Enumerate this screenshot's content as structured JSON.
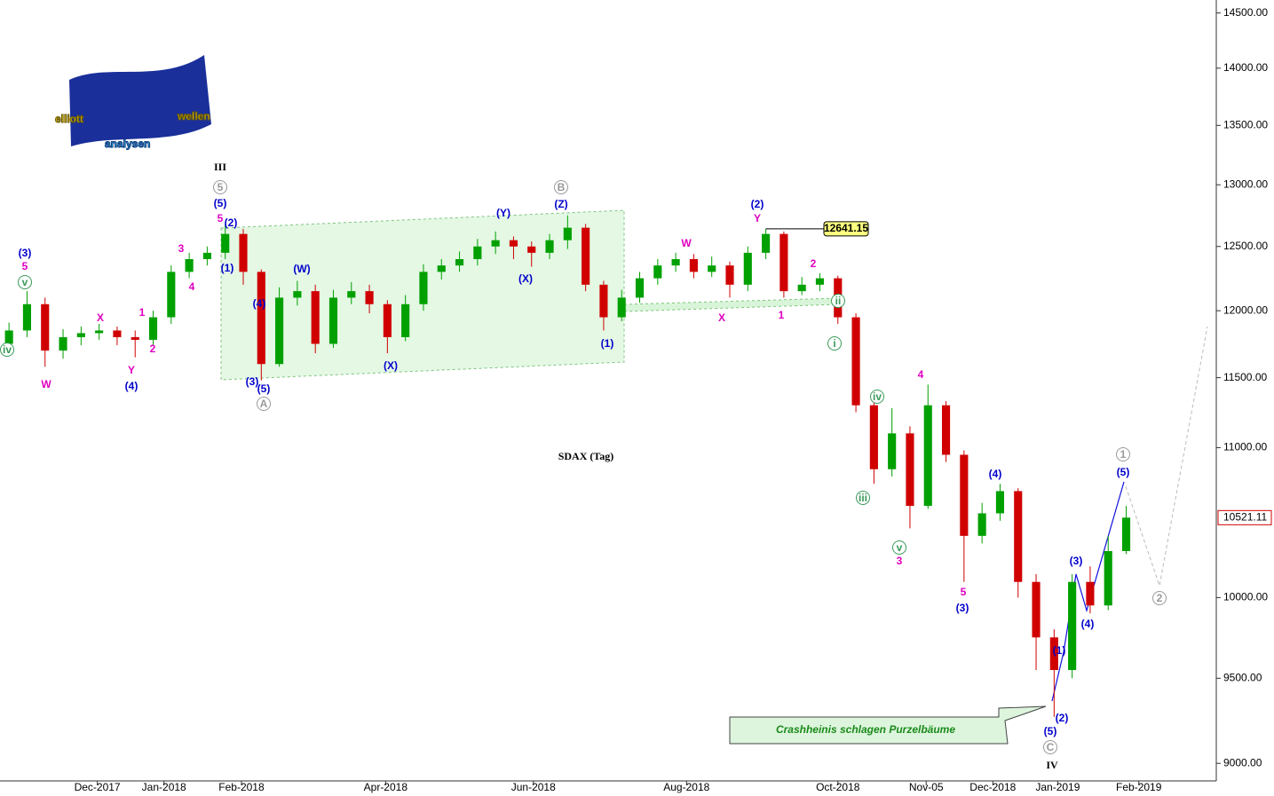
{
  "chart_data": {
    "type": "candlestick",
    "title": "SDAX (Tag)",
    "logo": [
      "elliott",
      "wellen",
      "analysen"
    ],
    "callout": "Crashheinis schlagen Purzelbäume",
    "log_scale": true,
    "up_color": "#00a000",
    "down_color": "#d00000",
    "xlim": [
      0,
      67.5
    ],
    "xticks": [
      {
        "value": 5.4,
        "label": "Dec-2017"
      },
      {
        "value": 9.1,
        "label": "Jan-2018"
      },
      {
        "value": 13.4,
        "label": "Feb-2018"
      },
      {
        "value": 21.4,
        "label": "Apr-2018"
      },
      {
        "value": 29.6,
        "label": "Jun-2018"
      },
      {
        "value": 38.1,
        "label": "Aug-2018"
      },
      {
        "value": 46.5,
        "label": "Oct-2018"
      },
      {
        "value": 51.4,
        "label": "Nov-05"
      },
      {
        "value": 55.1,
        "label": "Dec-2018"
      },
      {
        "value": 58.7,
        "label": "Jan-2019"
      },
      {
        "value": 63.2,
        "label": "Feb-2019"
      }
    ],
    "ylim": [
      8900,
      14620
    ],
    "yticks": [
      {
        "value": 9000,
        "label": "9000.00"
      },
      {
        "value": 9500,
        "label": "9500.00"
      },
      {
        "value": 10000,
        "label": "10000.00"
      },
      {
        "value": 11000,
        "label": "11000.00"
      },
      {
        "value": 11500,
        "label": "11500.00"
      },
      {
        "value": 12000,
        "label": "12000.00"
      },
      {
        "value": 12500,
        "label": "12500.00"
      },
      {
        "value": 13000,
        "label": "13000.00"
      },
      {
        "value": 13500,
        "label": "13500.00"
      },
      {
        "value": 14000,
        "label": "14000.00"
      },
      {
        "value": 14500,
        "label": "14500.00"
      }
    ],
    "open": [
      11750,
      11850,
      12050,
      11700,
      11800,
      11830,
      11850,
      11800,
      11780,
      11950,
      12300,
      12400,
      12450,
      12600,
      12300,
      11600,
      12100,
      12150,
      11750,
      12100,
      12150,
      12050,
      11800,
      12050,
      12300,
      12350,
      12400,
      12500,
      12550,
      12500,
      12450,
      12550,
      12650,
      12200,
      11950,
      12100,
      12250,
      12350,
      12400,
      12300,
      12350,
      12200,
      12450,
      12600,
      12150,
      12200,
      12250,
      11950,
      11300,
      10850,
      11100,
      10600,
      11300,
      10950,
      10400,
      10550,
      10700,
      10100,
      9750,
      9550,
      10100,
      9950,
      10300
    ],
    "high": [
      11910,
      12150,
      12100,
      11860,
      11880,
      11900,
      11880,
      11850,
      12000,
      12350,
      12450,
      12500,
      12680,
      12640,
      12320,
      12180,
      12230,
      12200,
      12160,
      12220,
      12200,
      12080,
      12120,
      12360,
      12400,
      12460,
      12560,
      12620,
      12580,
      12540,
      12600,
      12750,
      12680,
      12230,
      12160,
      12300,
      12400,
      12450,
      12440,
      12420,
      12380,
      12500,
      12641.15,
      12620,
      12260,
      12290,
      12270,
      11980,
      11320,
      11280,
      11150,
      11450,
      11330,
      10980,
      10620,
      10750,
      10720,
      10150,
      9800,
      10150,
      10200,
      10400,
      10600
    ],
    "low": [
      11690,
      11800,
      11580,
      11640,
      11740,
      11780,
      11740,
      11650,
      11740,
      11900,
      12250,
      12350,
      12400,
      12200,
      11480,
      11580,
      12040,
      11680,
      11720,
      12050,
      11980,
      11680,
      11770,
      12000,
      12240,
      12300,
      12350,
      12440,
      12400,
      12340,
      12400,
      12480,
      12150,
      11850,
      11920,
      12060,
      12200,
      12300,
      12250,
      12260,
      12100,
      12150,
      12400,
      12100,
      12120,
      12150,
      11900,
      11250,
      10750,
      10800,
      10450,
      10580,
      10900,
      10100,
      10350,
      10500,
      10000,
      9550,
      9270,
      9500,
      9900,
      9920,
      10280
    ],
    "close": [
      11850,
      12050,
      11700,
      11800,
      11830,
      11850,
      11800,
      11780,
      11950,
      12300,
      12400,
      12450,
      12600,
      12300,
      11600,
      12100,
      12150,
      11750,
      12100,
      12150,
      12050,
      11800,
      12050,
      12300,
      12350,
      12400,
      12500,
      12550,
      12500,
      12450,
      12550,
      12650,
      12200,
      11950,
      12100,
      12250,
      12350,
      12400,
      12300,
      12350,
      12200,
      12450,
      12600,
      12150,
      12200,
      12250,
      11950,
      11300,
      10850,
      11100,
      10600,
      11300,
      10950,
      10400,
      10550,
      10700,
      10100,
      9750,
      9550,
      10100,
      9950,
      10300,
      10521.11
    ],
    "annotations": [
      {
        "text": "(3)",
        "color": "#0000cc"
      },
      {
        "text": "5",
        "color": "#e000c0"
      },
      {
        "text": "v",
        "color": "#3a9a5a",
        "circle": true
      },
      {
        "text": "iv",
        "color": "#3a9a5a",
        "circle": true
      },
      {
        "text": "W",
        "color": "#e000c0"
      },
      {
        "text": "X",
        "color": "#e000c0"
      },
      {
        "text": "1",
        "color": "#e000c0"
      },
      {
        "text": "2",
        "color": "#e000c0"
      },
      {
        "text": "Y",
        "color": "#e000c0"
      },
      {
        "text": "(4)",
        "color": "#0000cc"
      },
      {
        "text": "3",
        "color": "#e000c0"
      },
      {
        "text": "4",
        "color": "#e000c0"
      },
      {
        "text": "III",
        "color": "#000000"
      },
      {
        "text": "5",
        "color": "#999999",
        "circle": true
      },
      {
        "text": "(5)",
        "color": "#0000cc"
      },
      {
        "text": "5",
        "color": "#e000c0"
      },
      {
        "text": "(2)",
        "color": "#0000cc"
      },
      {
        "text": "(1)",
        "color": "#0000cc"
      },
      {
        "text": "(4)",
        "color": "#0000cc"
      },
      {
        "text": "(3)",
        "color": "#0000cc"
      },
      {
        "text": "(5)",
        "color": "#0000cc"
      },
      {
        "text": "A",
        "color": "#999999",
        "circle": true
      },
      {
        "text": "(W)",
        "color": "#0000cc"
      },
      {
        "text": "(X)",
        "color": "#0000cc"
      },
      {
        "text": "(Y)",
        "color": "#0000cc"
      },
      {
        "text": "(X)",
        "color": "#0000cc"
      },
      {
        "text": "B",
        "color": "#999999",
        "circle": true
      },
      {
        "text": "(Z)",
        "color": "#0000cc"
      },
      {
        "text": "(1)",
        "color": "#0000cc"
      },
      {
        "text": "W",
        "color": "#e000c0"
      },
      {
        "text": "X",
        "color": "#e000c0"
      },
      {
        "text": "(2)",
        "color": "#0000cc"
      },
      {
        "text": "Y",
        "color": "#e000c0"
      },
      {
        "text": "1",
        "color": "#e000c0"
      },
      {
        "text": "2",
        "color": "#e000c0"
      },
      {
        "text": "ii",
        "color": "#3a9a5a",
        "circle": true
      },
      {
        "text": "i",
        "color": "#3a9a5a",
        "circle": true
      },
      {
        "text": "iv",
        "color": "#3a9a5a",
        "circle": true
      },
      {
        "text": "4",
        "color": "#e000c0"
      },
      {
        "text": "iii",
        "color": "#3a9a5a",
        "circle": true
      },
      {
        "text": "v",
        "color": "#3a9a5a",
        "circle": true
      },
      {
        "text": "3",
        "color": "#e000c0"
      },
      {
        "text": "5",
        "color": "#e000c0"
      },
      {
        "text": "(3)",
        "color": "#0000cc"
      },
      {
        "text": "(4)",
        "color": "#0000cc"
      },
      {
        "text": "(1)",
        "color": "#0000cc"
      },
      {
        "text": "(2)",
        "color": "#0000cc"
      },
      {
        "text": "(5)",
        "color": "#0000cc"
      },
      {
        "text": "C",
        "color": "#999999",
        "circle": true
      },
      {
        "text": "IV",
        "color": "#000000"
      },
      {
        "text": "(3)",
        "color": "#0000cc"
      },
      {
        "text": "(4)",
        "color": "#0000cc"
      },
      {
        "text": "1",
        "color": "#999999",
        "circle": true
      },
      {
        "text": "(5)",
        "color": "#0000cc"
      },
      {
        "text": "2",
        "color": "#999999",
        "circle": true
      }
    ]
  }
}
